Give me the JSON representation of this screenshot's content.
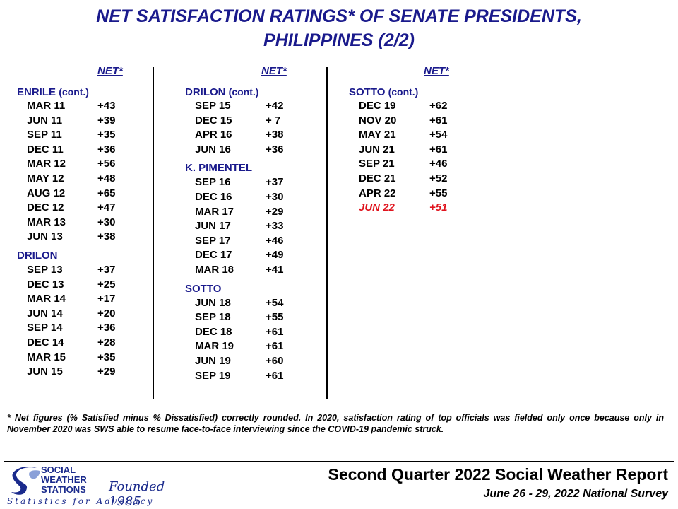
{
  "title": {
    "line1": "NET SATISFACTION  RATINGS* OF SENATE PRESIDENTS,",
    "line2": "PHILIPPINES (2/2)"
  },
  "net_label": "NET*",
  "columns": [
    {
      "groups": [
        {
          "name": "ENRILE",
          "suffix": "(cont.)",
          "rows": [
            {
              "date": "MAR 11",
              "value": "+43"
            },
            {
              "date": "JUN 11",
              "value": "+39"
            },
            {
              "date": "SEP 11",
              "value": "+35"
            },
            {
              "date": "DEC 11",
              "value": "+36"
            },
            {
              "date": "MAR 12",
              "value": "+56"
            },
            {
              "date": "MAY 12",
              "value": "+48"
            },
            {
              "date": "AUG 12",
              "value": "+65"
            },
            {
              "date": "DEC 12",
              "value": "+47"
            },
            {
              "date": "MAR 13",
              "value": "+30"
            },
            {
              "date": "JUN 13",
              "value": "+38"
            }
          ]
        },
        {
          "name": "DRILON",
          "suffix": "",
          "rows": [
            {
              "date": "SEP 13",
              "value": "+37"
            },
            {
              "date": "DEC 13",
              "value": "+25"
            },
            {
              "date": "MAR 14",
              "value": "+17"
            },
            {
              "date": "JUN 14",
              "value": "+20"
            },
            {
              "date": "SEP 14",
              "value": "+36"
            },
            {
              "date": "DEC 14",
              "value": "+28"
            },
            {
              "date": "MAR 15",
              "value": "+35"
            },
            {
              "date": "JUN 15",
              "value": "+29"
            }
          ]
        }
      ]
    },
    {
      "groups": [
        {
          "name": "DRILON",
          "suffix": "(cont.)",
          "rows": [
            {
              "date": "SEP 15",
              "value": "+42"
            },
            {
              "date": "DEC 15",
              "value": "+ 7"
            },
            {
              "date": "APR 16",
              "value": "+38"
            },
            {
              "date": "JUN 16",
              "value": "+36"
            }
          ]
        },
        {
          "name": "K. PIMENTEL",
          "suffix": "",
          "rows": [
            {
              "date": "SEP 16",
              "value": "+37"
            },
            {
              "date": "DEC 16",
              "value": "+30"
            },
            {
              "date": "MAR 17",
              "value": "+29"
            },
            {
              "date": "JUN 17",
              "value": "+33"
            },
            {
              "date": "SEP 17",
              "value": "+46"
            },
            {
              "date": "DEC 17",
              "value": "+49"
            },
            {
              "date": "MAR 18",
              "value": "+41"
            }
          ]
        },
        {
          "name": "SOTTO",
          "suffix": "",
          "rows": [
            {
              "date": "JUN 18",
              "value": "+54"
            },
            {
              "date": "SEP 18",
              "value": "+55"
            },
            {
              "date": "DEC 18",
              "value": "+61"
            },
            {
              "date": "MAR 19",
              "value": "+61"
            },
            {
              "date": "JUN 19",
              "value": "+60"
            },
            {
              "date": "SEP 19",
              "value": "+61"
            }
          ]
        }
      ]
    },
    {
      "groups": [
        {
          "name": "SOTTO",
          "suffix": "(cont.)",
          "rows": [
            {
              "date": "DEC 19",
              "value": "+62"
            },
            {
              "date": "NOV 20",
              "value": "+61"
            },
            {
              "date": "MAY 21",
              "value": "+54"
            },
            {
              "date": "JUN 21",
              "value": "+61"
            },
            {
              "date": "SEP 21",
              "value": "+46"
            },
            {
              "date": "DEC 21",
              "value": "+52"
            },
            {
              "date": "APR 22",
              "value": "+55"
            },
            {
              "date": "JUN 22",
              "value": "+51",
              "highlight": true
            }
          ]
        }
      ]
    }
  ],
  "footnote": "* Net figures  (% Satisfied  minus  % Dissatisfied)  correctly rounded.  In 2020, satisfaction  rating  of top officials was fielded  only once because  only in November  2020 was SWS able to resume face-to-face  interviewing  since the COVID-19 pandemic  struck.",
  "report": {
    "title": "Second Quarter 2022 Social Weather Report",
    "subtitle": "June 26 - 29, 2022 National Survey"
  },
  "logo": {
    "org_line1": "SOCIAL",
    "org_line2": "WEATHER",
    "org_line3": "STATIONS",
    "founded": "Founded 1985",
    "tagline": "Statistics for Advocacy"
  },
  "colors": {
    "heading": "#1a1a8c",
    "highlight": "#e0141e"
  }
}
